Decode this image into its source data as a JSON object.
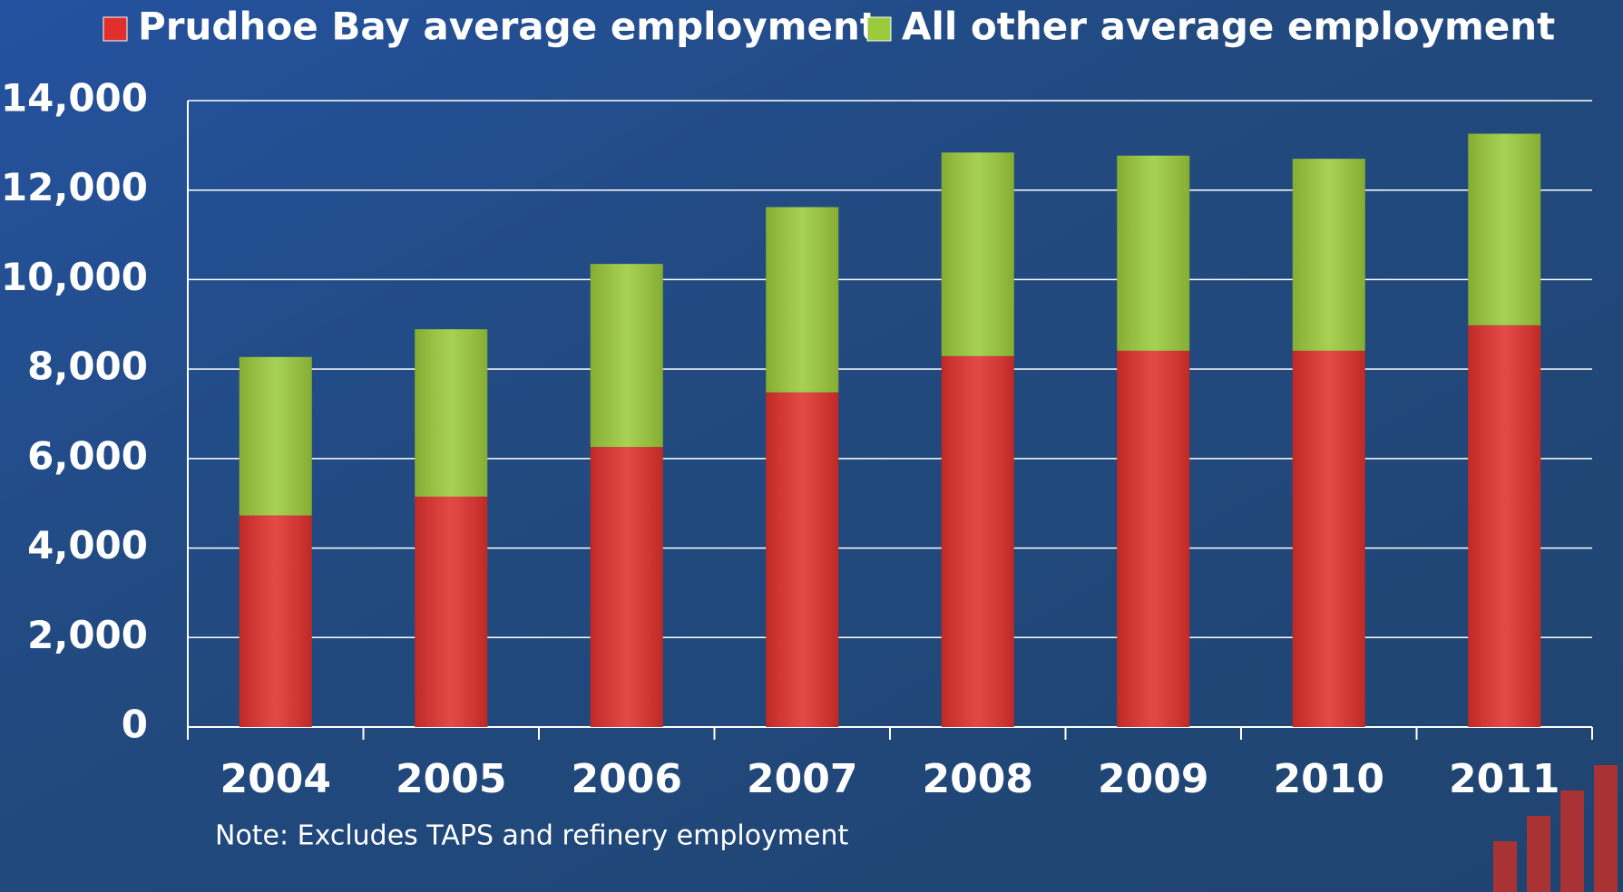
{
  "chart_data": {
    "type": "stacked_bar",
    "categories": [
      "2004",
      "2005",
      "2006",
      "2007",
      "2008",
      "2009",
      "2010",
      "2011"
    ],
    "series": [
      {
        "name": "Prudhoe Bay average employment",
        "color": "#e0302c",
        "values": [
          4730,
          5150,
          6260,
          7480,
          8290,
          8410,
          8410,
          8980
        ]
      },
      {
        "name": "All other average employment",
        "color": "#9bcb3b",
        "values": [
          3540,
          3740,
          4090,
          4140,
          4550,
          4360,
          4290,
          4280
        ]
      }
    ],
    "ylim": [
      0,
      14000
    ],
    "yticks": [
      0,
      {
        "value": 2000,
        "label": "2,000"
      },
      {
        "value": 4000,
        "label": "4,000"
      },
      {
        "value": 6000,
        "label": "6,000"
      },
      {
        "value": 8000,
        "label": "8,000"
      },
      {
        "value": 10000,
        "label": "10,000"
      },
      {
        "value": 12000,
        "label": "12,000"
      },
      {
        "value": 14000,
        "label": "14,000"
      }
    ],
    "grid": true,
    "note": "Note: Excludes TAPS and refinery employment"
  }
}
